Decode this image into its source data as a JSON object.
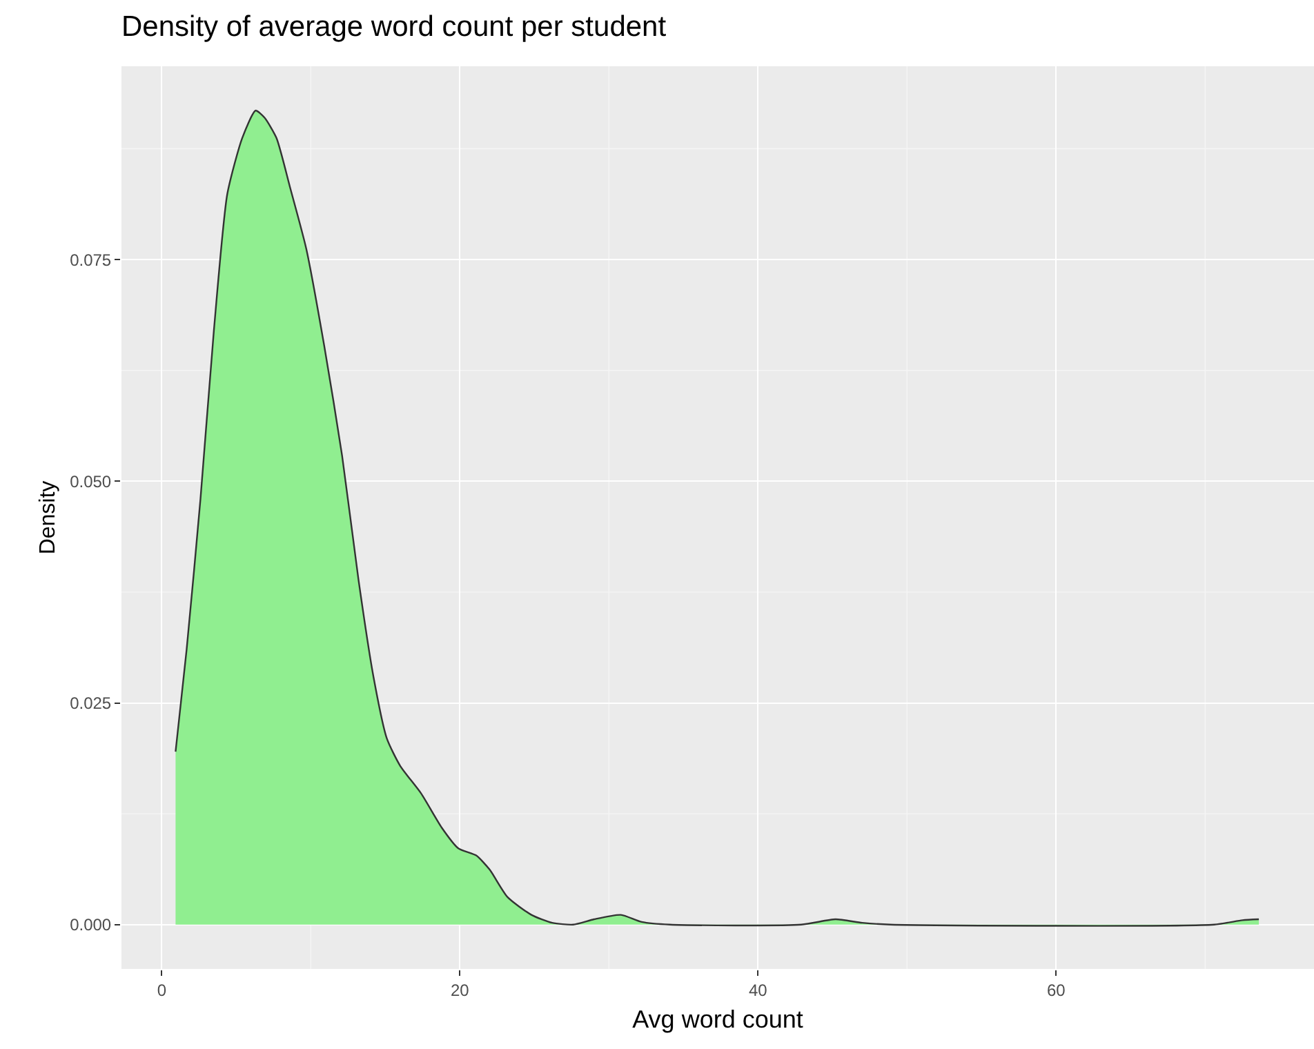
{
  "chart_data": {
    "type": "area",
    "title": "Density of average word count per student",
    "xlabel": "Avg word count",
    "ylabel": "Density",
    "x": [
      0.93,
      1.67,
      2.6,
      3.5,
      4.4,
      5.4,
      6.3,
      6.9,
      7.7,
      8.6,
      9.7,
      10.9,
      12.1,
      13.2,
      14.2,
      15.1,
      16.0,
      17.4,
      18.8,
      19.9,
      21.1,
      22.0,
      23.2,
      24.8,
      26.2,
      27.6,
      29.0,
      30.8,
      32.2,
      34.1,
      42.9,
      45.2,
      47.0,
      48.9,
      70.6,
      72.5,
      73.6
    ],
    "series": [
      {
        "color": "#90ee90",
        "values": [
          0.0195,
          0.031,
          0.048,
          0.067,
          0.0824,
          0.0887,
          0.0918,
          0.091,
          0.0887,
          0.0832,
          0.0762,
          0.0653,
          0.0529,
          0.0389,
          0.028,
          0.021,
          0.0179,
          0.0148,
          0.0109,
          0.0086,
          0.0078,
          0.0062,
          0.0031,
          0.0011,
          0.0002,
          0,
          0.0006,
          0.0011,
          0.0003,
          0,
          0,
          0.0006,
          0.0002,
          0,
          0,
          0.0005,
          0.0006
        ]
      }
    ],
    "xlim": [
      -2.7,
      77.3
    ],
    "ylim": [
      -0.005,
      0.0968
    ],
    "xticks": [
      0,
      20,
      40,
      60
    ],
    "yticks": [
      {
        "value": 0,
        "label": "0.000"
      },
      {
        "value": 0.025,
        "label": "0.025"
      },
      {
        "value": 0.05,
        "label": "0.050"
      },
      {
        "value": 0.075,
        "label": "0.075"
      }
    ],
    "grid": true
  }
}
